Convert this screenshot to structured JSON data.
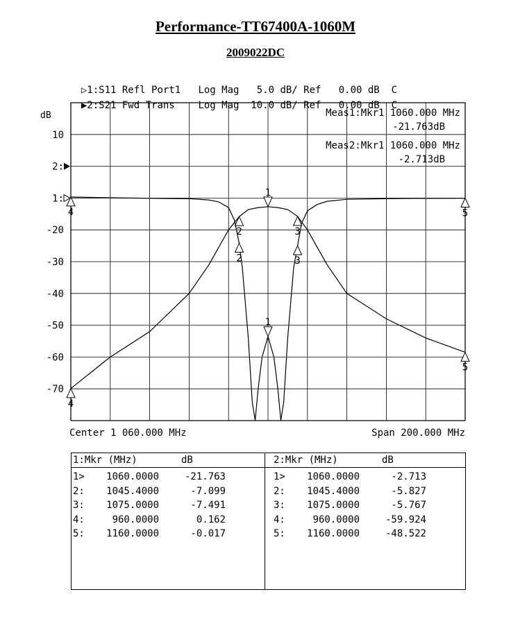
{
  "title": "Performance-TT67400A-1060M",
  "subtitle": "2009022DC",
  "traces_header": [
    {
      "marker": "▷",
      "text": "1:S11 Refl Port1   Log Mag   5.0 dB/ Ref   0.00 dB  C"
    },
    {
      "marker": "▶",
      "text": "2:S21 Fwd Trans    Log Mag  10.0 dB/ Ref   0.00 dB  C"
    }
  ],
  "y_unit": "dB",
  "meas": [
    {
      "line1": "Meas1:Mkr1 1060.000 MHz",
      "line2": "-21.763dB"
    },
    {
      "line1": "Meas2:Mkr1 1060.000 MHz",
      "line2": "-2.713dB"
    }
  ],
  "footer": {
    "center": "Center 1 060.000 MHz",
    "span": "Span 200.000 MHz"
  },
  "table": {
    "left": {
      "header_label": "1:Mkr (MHz)",
      "header_unit": "dB",
      "rows": [
        {
          "id": "1>",
          "freq": "1060.0000",
          "val": "-21.763"
        },
        {
          "id": "2:",
          "freq": "1045.4000",
          "val": "-7.099"
        },
        {
          "id": "3:",
          "freq": "1075.0000",
          "val": "-7.491"
        },
        {
          "id": "4:",
          "freq": "960.0000",
          "val": "0.162"
        },
        {
          "id": "5:",
          "freq": "1160.0000",
          "val": "-0.017"
        }
      ]
    },
    "right": {
      "header_label": "2:Mkr (MHz)",
      "header_unit": "dB",
      "rows": [
        {
          "id": "1>",
          "freq": "1060.0000",
          "val": "-2.713"
        },
        {
          "id": "2:",
          "freq": "1045.4000",
          "val": "-5.827"
        },
        {
          "id": "3:",
          "freq": "1075.0000",
          "val": "-5.767"
        },
        {
          "id": "4:",
          "freq": "960.0000",
          "val": "-59.924"
        },
        {
          "id": "5:",
          "freq": "1160.0000",
          "val": "-48.522"
        }
      ]
    }
  },
  "chart_data": {
    "type": "line",
    "xlabel": "",
    "ylabel": "dB",
    "xlim": [
      960,
      1160
    ],
    "grid": true,
    "x_divisions": 10,
    "y_divisions": 10,
    "y_tick_labels": [
      "10",
      "2:",
      "1:",
      "-20",
      "-30",
      "-40",
      "-50",
      "-60",
      "-70"
    ],
    "y_tick_values": [
      2,
      1,
      0,
      -1,
      -2,
      -3,
      -4,
      -5,
      -6
    ],
    "series": [
      {
        "name": "S11",
        "ref_label": "1:",
        "scale_db_per_div": 5,
        "ref_db": 0,
        "x": [
          960,
          990,
          1020,
          1030,
          1035,
          1040,
          1043,
          1045.4,
          1047,
          1050,
          1052,
          1053.5,
          1055,
          1057,
          1060,
          1063,
          1065,
          1066.5,
          1068,
          1070,
          1073,
          1075,
          1077,
          1080,
          1085,
          1090,
          1100,
          1130,
          1160
        ],
        "y": [
          0.16,
          0,
          -0.1,
          -0.3,
          -0.6,
          -1.5,
          -3.5,
          -7.1,
          -11,
          -22,
          -32,
          -35,
          -30,
          -25,
          -21.76,
          -25,
          -30,
          -35,
          -32,
          -22,
          -11,
          -7.49,
          -4,
          -2,
          -1,
          -0.5,
          -0.2,
          -0.05,
          -0.02
        ],
        "markers": [
          {
            "id": "1",
            "x": 1060,
            "y": -21.763
          },
          {
            "id": "2",
            "x": 1045.4,
            "y": -7.099
          },
          {
            "id": "3",
            "x": 1075,
            "y": -7.491
          },
          {
            "id": "4",
            "x": 960,
            "y": 0.162
          },
          {
            "id": "5",
            "x": 1160,
            "y": -0.017
          }
        ]
      },
      {
        "name": "S21",
        "ref_label": "2:",
        "scale_db_per_div": 10,
        "ref_db": 0,
        "x": [
          960,
          980,
          1000,
          1020,
          1030,
          1040,
          1045.4,
          1050,
          1055,
          1060,
          1065,
          1070,
          1075,
          1080,
          1090,
          1100,
          1120,
          1140,
          1160
        ],
        "y": [
          -59.92,
          -50,
          -42,
          -30,
          -21,
          -10,
          -5.83,
          -3.6,
          -3,
          -2.71,
          -3,
          -3.6,
          -5.77,
          -10,
          -21,
          -30,
          -38,
          -44,
          -48.52
        ],
        "markers": [
          {
            "id": "1",
            "x": 1060,
            "y": -2.713
          },
          {
            "id": "2",
            "x": 1045.4,
            "y": -5.827
          },
          {
            "id": "3",
            "x": 1075,
            "y": -5.767
          },
          {
            "id": "4",
            "x": 960,
            "y": -59.924
          },
          {
            "id": "5",
            "x": 1160,
            "y": -48.522
          }
        ]
      }
    ]
  }
}
